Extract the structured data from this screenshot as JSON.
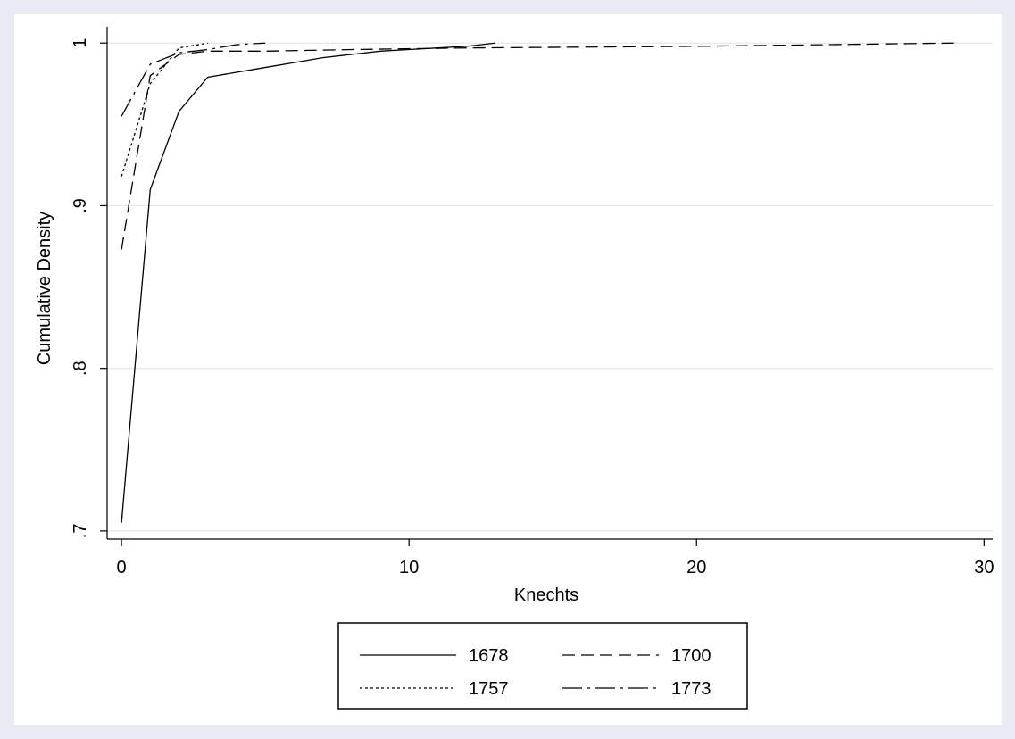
{
  "chart_data": {
    "type": "line",
    "title": "",
    "xlabel": "Knechts",
    "ylabel": "Cumulative Density",
    "xlim": [
      -0.5,
      30.3
    ],
    "ylim": [
      0.695,
      1.01
    ],
    "xticks": [
      0,
      10,
      20,
      30
    ],
    "xtick_labels": [
      "0",
      "10",
      "20",
      "30"
    ],
    "yticks": [
      0.7,
      0.8,
      0.9,
      1.0
    ],
    "ytick_labels": [
      ".7",
      ".8",
      ".9",
      "1"
    ],
    "grid": "horizontal",
    "legend": {
      "position": "bottom",
      "columns": 2
    },
    "series": [
      {
        "name": "1678",
        "style": "solid",
        "x": [
          0,
          1,
          2,
          3,
          4,
          5,
          6,
          7,
          8,
          9,
          10,
          11,
          12,
          13
        ],
        "y": [
          0.705,
          0.91,
          0.958,
          0.979,
          0.982,
          0.985,
          0.988,
          0.991,
          0.993,
          0.995,
          0.996,
          0.997,
          0.998,
          1.0
        ]
      },
      {
        "name": "1700",
        "style": "dashed",
        "x": [
          0,
          1,
          2,
          3,
          5,
          8,
          12,
          20,
          29
        ],
        "y": [
          0.873,
          0.98,
          0.993,
          0.995,
          0.995,
          0.996,
          0.997,
          0.998,
          1.0
        ]
      },
      {
        "name": "1757",
        "style": "dotted",
        "x": [
          0,
          1,
          2,
          3
        ],
        "y": [
          0.918,
          0.975,
          0.997,
          1.0
        ]
      },
      {
        "name": "1773",
        "style": "dashdot",
        "x": [
          0,
          1,
          2,
          3,
          4,
          5
        ],
        "y": [
          0.955,
          0.987,
          0.994,
          0.996,
          0.999,
          1.0
        ]
      }
    ]
  }
}
